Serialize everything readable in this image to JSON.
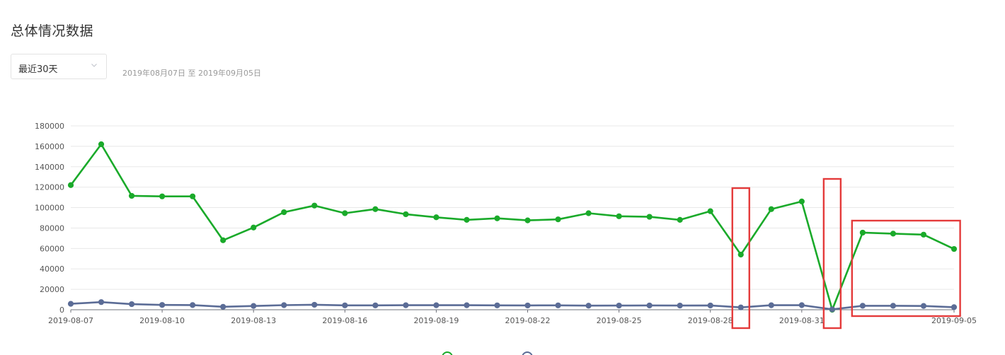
{
  "page": {
    "title": "总体情况数据"
  },
  "filter": {
    "range_label": "最近30天",
    "date_range_text": "2019年08月07日 至 2019年09月05日"
  },
  "colors": {
    "series_a": "#1aaa2a",
    "series_b": "#5b6c96",
    "highlight_box": "#e43a3a",
    "grid": "#e8e8e8",
    "axis": "#6e7079"
  },
  "chart_data": {
    "type": "line",
    "x": [
      "2019-08-07",
      "2019-08-08",
      "2019-08-09",
      "2019-08-10",
      "2019-08-11",
      "2019-08-12",
      "2019-08-13",
      "2019-08-14",
      "2019-08-15",
      "2019-08-16",
      "2019-08-17",
      "2019-08-18",
      "2019-08-19",
      "2019-08-20",
      "2019-08-21",
      "2019-08-22",
      "2019-08-23",
      "2019-08-24",
      "2019-08-25",
      "2019-08-26",
      "2019-08-27",
      "2019-08-28",
      "2019-08-29",
      "2019-08-30",
      "2019-08-31",
      "2019-09-01",
      "2019-09-02",
      "2019-09-03",
      "2019-09-04",
      "2019-09-05"
    ],
    "x_tick_labels": [
      "2019-08-07",
      "2019-08-10",
      "2019-08-13",
      "2019-08-16",
      "2019-08-19",
      "2019-08-22",
      "2019-08-25",
      "2019-08-28",
      "2019-08-31",
      "2019-09-05"
    ],
    "series": [
      {
        "color": "#1aaa2a",
        "values": [
          122000,
          162000,
          111500,
          111000,
          111000,
          68000,
          80500,
          95500,
          102000,
          94500,
          98500,
          93500,
          90500,
          88000,
          89500,
          87500,
          88500,
          94500,
          91500,
          91000,
          88000,
          96500,
          54000,
          98500,
          106000,
          0,
          75500,
          74500,
          73500,
          59500
        ]
      },
      {
        "color": "#5b6c96",
        "values": [
          5800,
          7500,
          5500,
          4700,
          4600,
          2900,
          3700,
          4500,
          4900,
          4300,
          4300,
          4400,
          4400,
          4400,
          4300,
          4200,
          4300,
          4000,
          4100,
          4200,
          4100,
          4200,
          2300,
          4400,
          4500,
          400,
          3900,
          3900,
          3700,
          2500
        ]
      }
    ],
    "y_ticks": [
      0,
      20000,
      40000,
      60000,
      80000,
      100000,
      120000,
      140000,
      160000,
      180000
    ],
    "ylim": [
      0,
      180000
    ],
    "grid": true,
    "legend": "bottom-center",
    "highlights": [
      {
        "start_index": 22,
        "end_index": 22
      },
      {
        "start_index": 25,
        "end_index": 25
      },
      {
        "start_index": 26,
        "end_index": 29
      }
    ]
  }
}
